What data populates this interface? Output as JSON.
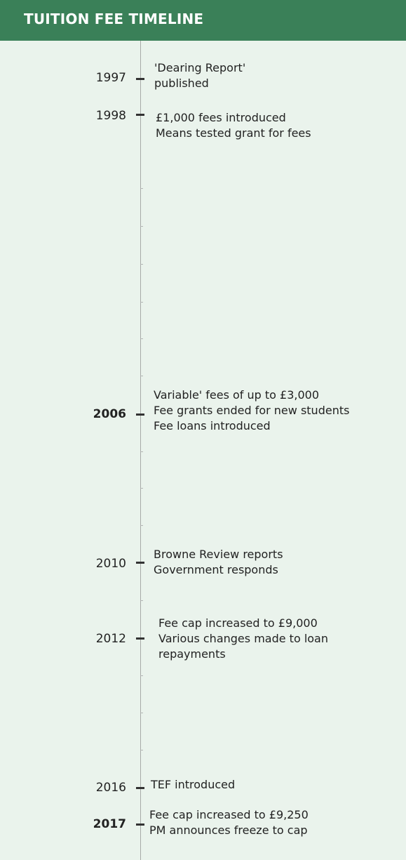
{
  "header": {
    "title": "TUITION FEE TIMELINE"
  },
  "colors": {
    "header_bg": "#3a8058",
    "page_bg": "#eaf3ec",
    "axis": "#a7aaa8",
    "tick": "#333333"
  },
  "events": [
    {
      "year": "1997",
      "lines": [
        "'Dearing Report'",
        "published"
      ]
    },
    {
      "year": "1998",
      "lines": [
        "£1,000 fees introduced",
        "Means tested grant for fees"
      ]
    },
    {
      "year": "2006",
      "lines": [
        "Variable' fees of up to £3,000",
        "Fee grants ended for new students",
        "Fee loans introduced"
      ]
    },
    {
      "year": "2010",
      "lines": [
        "Browne Review reports",
        "Government responds"
      ]
    },
    {
      "year": "2012",
      "lines": [
        "Fee cap increased to £9,000",
        "Various changes made to loan",
        "repayments"
      ]
    },
    {
      "year": "2016",
      "lines": [
        "TEF introduced"
      ]
    },
    {
      "year": "2017",
      "lines": [
        "Fee cap increased to £9,250",
        "PM announces freeze to cap"
      ]
    }
  ]
}
